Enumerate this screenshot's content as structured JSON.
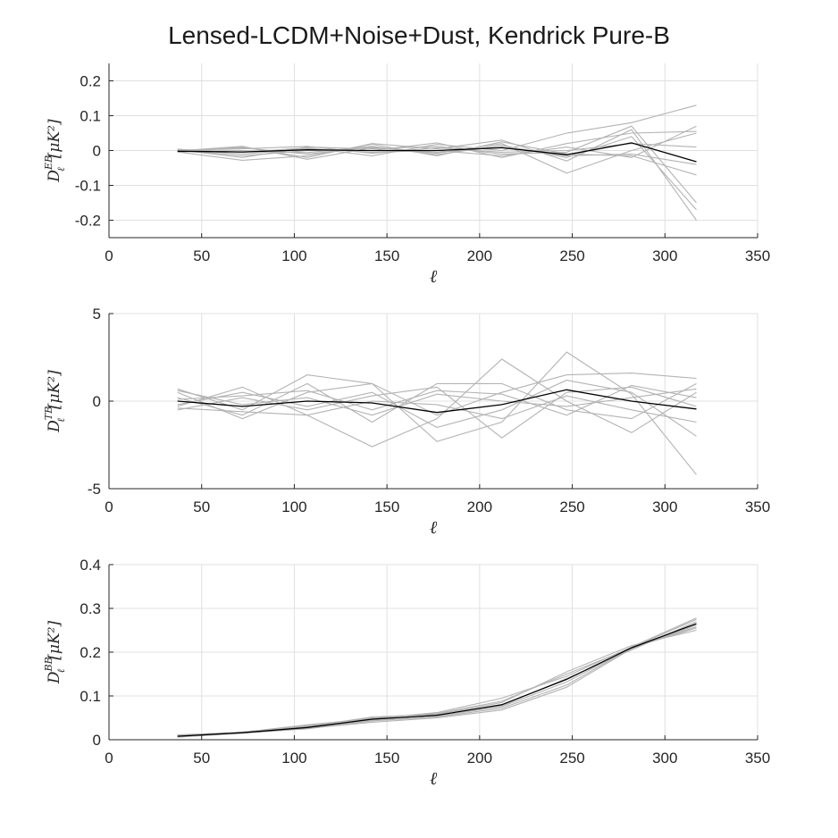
{
  "title": "Lensed-LCDM+Noise+Dust, Kendrick Pure-B",
  "colors": {
    "mean": "#000000",
    "realization": "#b3b3b3",
    "grid": "#e0e0e0",
    "axis": "#262626"
  },
  "chart_data": [
    {
      "type": "line",
      "name": "eb-panel",
      "ylabel_base": "D",
      "ylabel_sub": "ℓ",
      "ylabel_sup": "EB",
      "ylabel_unit": "[μK²]",
      "xlabel": "ℓ",
      "xlim": [
        0,
        350
      ],
      "ylim": [
        -0.25,
        0.25
      ],
      "xticks": [
        0,
        50,
        100,
        150,
        200,
        250,
        300,
        350
      ],
      "yticks": [
        -0.2,
        -0.1,
        0,
        0.1,
        0.2
      ],
      "yticklabels": [
        "-0.2",
        "-0.1",
        "0",
        "0.1",
        "0.2"
      ],
      "grid": true,
      "x": [
        37,
        72,
        107,
        142,
        177,
        212,
        247,
        282,
        317
      ],
      "series": [
        {
          "role": "mean",
          "values": [
            -0.002,
            -0.004,
            0.002,
            0.0,
            0.0,
            0.008,
            -0.012,
            0.022,
            -0.032
          ]
        },
        {
          "role": "realization",
          "values": [
            0.002,
            -0.02,
            0.01,
            0.005,
            0.012,
            -0.01,
            -0.005,
            0.07,
            -0.15
          ]
        },
        {
          "role": "realization",
          "values": [
            -0.005,
            0.01,
            -0.02,
            0.02,
            0.005,
            0.03,
            -0.03,
            0.06,
            -0.2
          ]
        },
        {
          "role": "realization",
          "values": [
            0.003,
            -0.005,
            0.008,
            -0.015,
            0.018,
            0.0,
            0.05,
            0.08,
            0.13
          ]
        },
        {
          "role": "realization",
          "values": [
            -0.002,
            0.008,
            -0.01,
            0.01,
            -0.008,
            0.02,
            -0.065,
            0.0,
            0.05
          ]
        },
        {
          "role": "realization",
          "values": [
            0.004,
            -0.01,
            0.005,
            -0.005,
            0.0,
            -0.015,
            0.01,
            -0.02,
            0.07
          ]
        },
        {
          "role": "realization",
          "values": [
            -0.003,
            0.0,
            -0.006,
            0.012,
            -0.012,
            0.015,
            -0.02,
            0.04,
            -0.17
          ]
        },
        {
          "role": "realization",
          "values": [
            0.001,
            0.005,
            0.012,
            -0.008,
            0.008,
            -0.005,
            0.0,
            0.02,
            0.01
          ]
        },
        {
          "role": "realization",
          "values": [
            -0.004,
            -0.028,
            -0.015,
            0.018,
            -0.015,
            0.025,
            -0.01,
            -0.015,
            -0.07
          ]
        },
        {
          "role": "realization",
          "values": [
            0.002,
            -0.015,
            0.0,
            0.0,
            0.022,
            -0.02,
            0.02,
            0.05,
            0.055
          ]
        },
        {
          "role": "realization",
          "values": [
            -0.001,
            0.012,
            -0.025,
            0.008,
            -0.005,
            0.01,
            -0.015,
            -0.01,
            -0.04
          ]
        }
      ]
    },
    {
      "type": "line",
      "name": "tb-panel",
      "ylabel_base": "D",
      "ylabel_sub": "ℓ",
      "ylabel_sup": "TB",
      "ylabel_unit": "[μK²]",
      "xlabel": "ℓ",
      "xlim": [
        0,
        350
      ],
      "ylim": [
        -5,
        5
      ],
      "xticks": [
        0,
        50,
        100,
        150,
        200,
        250,
        300,
        350
      ],
      "yticks": [
        -5,
        0,
        5
      ],
      "yticklabels": [
        "-5",
        "0",
        "5"
      ],
      "grid": true,
      "x": [
        37,
        72,
        107,
        142,
        177,
        212,
        247,
        282,
        317
      ],
      "series": [
        {
          "role": "mean",
          "values": [
            0.0,
            -0.3,
            0.0,
            -0.1,
            -0.65,
            -0.2,
            0.65,
            0.0,
            -0.45
          ]
        },
        {
          "role": "realization",
          "values": [
            0.7,
            -0.5,
            1.5,
            1.0,
            -2.3,
            -1.2,
            2.8,
            0.4,
            -4.2
          ]
        },
        {
          "role": "realization",
          "values": [
            -0.3,
            0.8,
            -0.8,
            -2.6,
            -1.0,
            2.4,
            0.0,
            -1.8,
            0.5
          ]
        },
        {
          "role": "realization",
          "values": [
            0.5,
            -1.0,
            0.5,
            1.0,
            -0.8,
            0.5,
            1.5,
            1.6,
            1.3
          ]
        },
        {
          "role": "realization",
          "values": [
            -0.5,
            0.2,
            -0.5,
            0.3,
            0.8,
            -2.1,
            0.5,
            0.8,
            -0.3
          ]
        },
        {
          "role": "realization",
          "values": [
            0.2,
            -0.8,
            1.0,
            -1.2,
            1.0,
            1.0,
            -0.5,
            -1.0,
            1.0
          ]
        },
        {
          "role": "realization",
          "values": [
            -0.2,
            0.5,
            -0.3,
            0.5,
            -1.5,
            -0.5,
            1.2,
            0.5,
            -2.0
          ]
        },
        {
          "role": "realization",
          "values": [
            0.6,
            -0.2,
            0.2,
            -0.8,
            0.4,
            0.0,
            -0.3,
            0.2,
            0.7
          ]
        },
        {
          "role": "realization",
          "values": [
            -0.4,
            -0.6,
            -0.8,
            0.0,
            -0.2,
            -1.0,
            0.3,
            -0.5,
            -1.2
          ]
        },
        {
          "role": "realization",
          "values": [
            0.1,
            0.3,
            0.6,
            -0.5,
            0.6,
            0.4,
            -0.8,
            0.9,
            0.2
          ]
        }
      ]
    },
    {
      "type": "line",
      "name": "bb-panel",
      "ylabel_base": "D",
      "ylabel_sub": "ℓ",
      "ylabel_sup": "BB",
      "ylabel_unit": "[μK²]",
      "xlabel": "ℓ",
      "xlim": [
        0,
        350
      ],
      "ylim": [
        0,
        0.4
      ],
      "xticks": [
        0,
        50,
        100,
        150,
        200,
        250,
        300,
        350
      ],
      "yticks": [
        0,
        0.1,
        0.2,
        0.3,
        0.4
      ],
      "yticklabels": [
        "0",
        "0.1",
        "0.2",
        "0.3",
        "0.4"
      ],
      "grid": true,
      "x": [
        37,
        72,
        107,
        142,
        177,
        212,
        247,
        282,
        317
      ],
      "series": [
        {
          "role": "mean",
          "values": [
            0.008,
            0.016,
            0.028,
            0.047,
            0.056,
            0.08,
            0.138,
            0.21,
            0.265
          ]
        },
        {
          "role": "realization",
          "values": [
            0.006,
            0.015,
            0.025,
            0.043,
            0.052,
            0.072,
            0.125,
            0.21,
            0.258
          ]
        },
        {
          "role": "realization",
          "values": [
            0.01,
            0.017,
            0.032,
            0.05,
            0.06,
            0.088,
            0.15,
            0.21,
            0.275
          ]
        },
        {
          "role": "realization",
          "values": [
            0.007,
            0.016,
            0.027,
            0.045,
            0.055,
            0.078,
            0.14,
            0.205,
            0.27
          ]
        },
        {
          "role": "realization",
          "values": [
            0.009,
            0.018,
            0.03,
            0.052,
            0.058,
            0.085,
            0.155,
            0.215,
            0.25
          ]
        },
        {
          "role": "realization",
          "values": [
            0.008,
            0.015,
            0.026,
            0.04,
            0.05,
            0.068,
            0.12,
            0.208,
            0.262
          ]
        },
        {
          "role": "realization",
          "values": [
            0.011,
            0.017,
            0.034,
            0.048,
            0.062,
            0.095,
            0.145,
            0.212,
            0.278
          ]
        },
        {
          "role": "realization",
          "values": [
            0.006,
            0.016,
            0.029,
            0.046,
            0.054,
            0.076,
            0.132,
            0.21,
            0.255
          ]
        }
      ]
    }
  ]
}
